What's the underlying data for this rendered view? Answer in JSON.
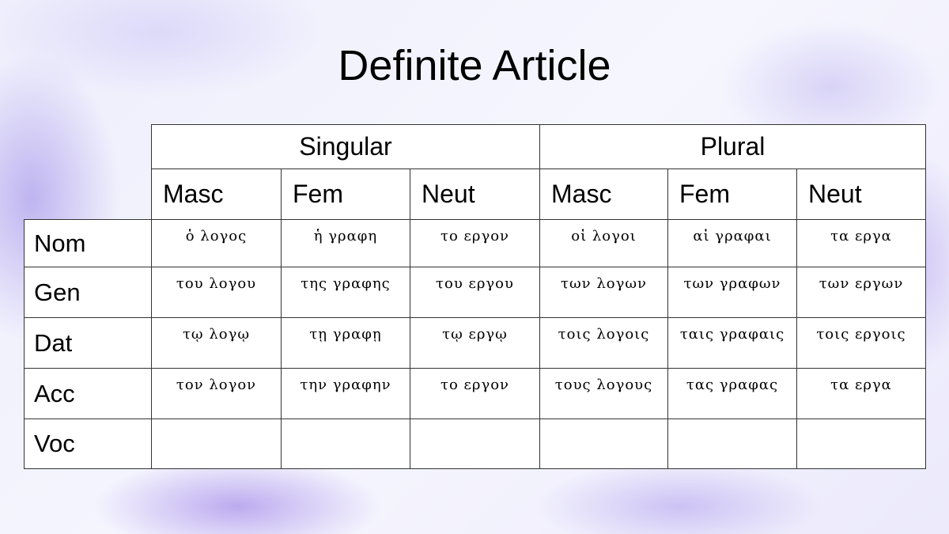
{
  "title": "Definite Article",
  "groups": [
    "Singular",
    "Plural"
  ],
  "genders": [
    "Masc",
    "Fem",
    "Neut",
    "Masc",
    "Fem",
    "Neut"
  ],
  "rows": [
    {
      "case": "Nom",
      "forms": [
        "ὁ λογος",
        "ἡ γραφη",
        "το εργον",
        "οἱ λογοι",
        "αἱ γραφαι",
        "τα εργα"
      ]
    },
    {
      "case": "Gen",
      "forms": [
        "του λογου",
        "της γραφης",
        "του εργου",
        "των λογων",
        "των γραφων",
        "των εργων"
      ]
    },
    {
      "case": "Dat",
      "forms": [
        "τῳ λογῳ",
        "τῃ γραφῃ",
        "τῳ εργῳ",
        "τοις λογοις",
        "ταις γραφαις",
        "τοις εργοις"
      ]
    },
    {
      "case": "Acc",
      "forms": [
        "τον λογον",
        "την γραφην",
        "το εργον",
        "τους λογους",
        "τας γραφας",
        "τα εργα"
      ]
    },
    {
      "case": "Voc",
      "forms": [
        "",
        "",
        "",
        "",
        "",
        ""
      ]
    }
  ]
}
